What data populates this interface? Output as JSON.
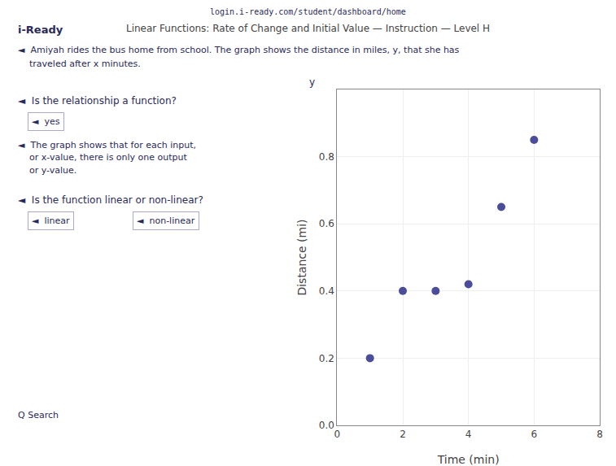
{
  "chart_data": {
    "type": "scatter",
    "title": "Linear Functions: Rate of Change and Initial Value — Instruction — Level H",
    "xlabel": "Time (min)",
    "ylabel": "Distance (mi)",
    "x": [
      1,
      2,
      3,
      4,
      5,
      6
    ],
    "values": [
      0.2,
      0.4,
      0.4,
      0.42,
      0.65,
      0.85
    ],
    "color": "#4a4e9a",
    "marker": "circle",
    "xlim": [
      0,
      8
    ],
    "ylim": [
      0,
      1.0
    ],
    "xticks": [
      0,
      2,
      4,
      6,
      8
    ],
    "yticks": [
      {
        "value": 0,
        "label": "0.0"
      },
      0.2,
      0.4,
      0.6,
      0.8
    ],
    "grid": true,
    "annotations": [
      "login.i-ready.com/student/dashboard/home",
      "i-Ready",
      "◄  Amiyah rides the bus home from school. The graph shows the distance in miles, y, that she has",
      "traveled after x minutes.",
      "◄  Is the relationship a function?",
      "◄  yes",
      "◄  The graph shows that for each input,",
      "or x-value, there is only one output",
      "or y-value.",
      "◄  Is the function linear or non-linear?",
      "◄  linear",
      "◄  non-linear",
      "Q Search",
      "y"
    ]
  }
}
